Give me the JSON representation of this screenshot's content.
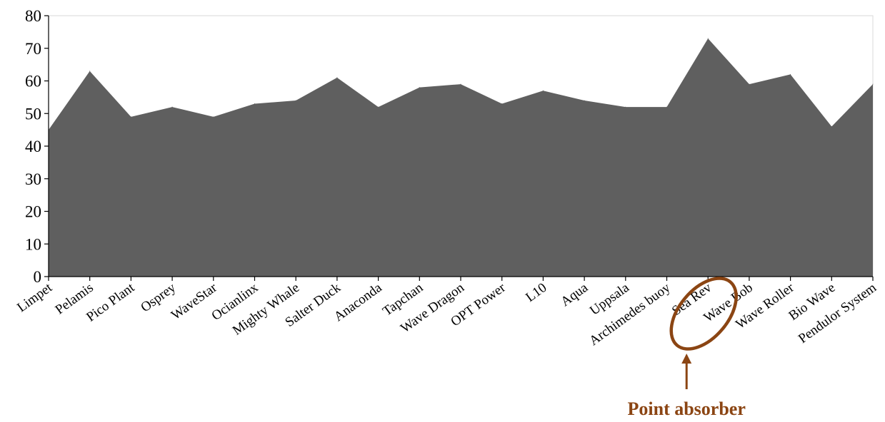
{
  "chart_data": {
    "type": "area",
    "title": "",
    "xlabel": "",
    "ylabel": "",
    "ylim": [
      0,
      80
    ],
    "yticks": [
      0,
      10,
      20,
      30,
      40,
      50,
      60,
      70,
      80
    ],
    "grid": false,
    "legend": "none",
    "categories": [
      "Limpet",
      "Pelamis",
      "Pico Plant",
      "Osprey",
      "WaveStar",
      "Ocianlinx",
      "Mighty Whale",
      "Salter Duck",
      "Anaconda",
      "Tapchan",
      "Wave Dragon",
      "OPT Power",
      "L10",
      "Aqua",
      "Uppsala",
      "Archimedes buoy",
      "Sea Rev",
      "Wave Bob",
      "Wave Roller",
      "Bio Wave",
      "Pendulor System"
    ],
    "series": [
      {
        "values": [
          45,
          63,
          49,
          52,
          49,
          53,
          54,
          61,
          52,
          58,
          59,
          53,
          57,
          54,
          52,
          52,
          73,
          59,
          62,
          46,
          59
        ]
      }
    ],
    "annotations": [
      {
        "text": "Point absorber",
        "target": "Sea Rev",
        "shape": "ellipse",
        "color": "#8B4513"
      }
    ]
  },
  "colors": {
    "area_fill": "#5f5f5f",
    "annotation": "#8B4513"
  }
}
